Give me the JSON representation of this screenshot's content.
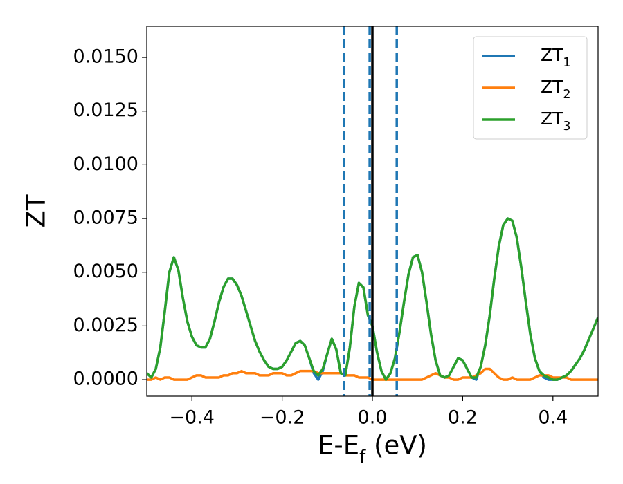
{
  "chart_data": {
    "type": "line",
    "xlabel": "E-E_{f} (eV)",
    "ylabel": "ZT",
    "xlim": [
      -0.5,
      0.5
    ],
    "ylim": [
      -0.00077,
      0.01645
    ],
    "xticks": [
      {
        "value": -0.4,
        "label": "−0.4"
      },
      {
        "value": -0.2,
        "label": "−0.2"
      },
      {
        "value": 0,
        "label": "0.0"
      },
      {
        "value": 0.2,
        "label": "0.2"
      },
      {
        "value": 0.4,
        "label": "0.4"
      }
    ],
    "yticks": [
      {
        "value": 0,
        "label": "0.0000"
      },
      {
        "value": 0.0025,
        "label": "0.0025"
      },
      {
        "value": 0.005,
        "label": "0.0050"
      },
      {
        "value": 0.0075,
        "label": "0.0075"
      },
      {
        "value": 0.01,
        "label": "0.0100"
      },
      {
        "value": 0.0125,
        "label": "0.0125"
      },
      {
        "value": 0.015,
        "label": "0.0150"
      }
    ],
    "legend": "upper right",
    "vlines": [
      {
        "x": -0.063,
        "color": "#1f77b4",
        "style": "dashed"
      },
      {
        "x": -0.006,
        "color": "#1f77b4",
        "style": "dashed"
      },
      {
        "x": 0.054,
        "color": "#1f77b4",
        "style": "dashed"
      },
      {
        "x": 0,
        "color": "#000000",
        "style": "solid"
      }
    ],
    "x": [
      -0.5,
      -0.49,
      -0.48,
      -0.47,
      -0.46,
      -0.45,
      -0.44,
      -0.43,
      -0.42,
      -0.41,
      -0.4,
      -0.39,
      -0.38,
      -0.37,
      -0.36,
      -0.35,
      -0.34,
      -0.33,
      -0.32,
      -0.31,
      -0.3,
      -0.29,
      -0.28,
      -0.27,
      -0.26,
      -0.25,
      -0.24,
      -0.23,
      -0.22,
      -0.21,
      -0.2,
      -0.19,
      -0.18,
      -0.17,
      -0.16,
      -0.15,
      -0.14,
      -0.13,
      -0.12,
      -0.11,
      -0.1,
      -0.09,
      -0.08,
      -0.07,
      -0.06,
      -0.05,
      -0.04,
      -0.03,
      -0.02,
      -0.01,
      0,
      0.01,
      0.02,
      0.03,
      0.04,
      0.05,
      0.06,
      0.07,
      0.08,
      0.09,
      0.1,
      0.11,
      0.12,
      0.13,
      0.14,
      0.15,
      0.16,
      0.17,
      0.18,
      0.19,
      0.2,
      0.21,
      0.22,
      0.23,
      0.24,
      0.25,
      0.26,
      0.27,
      0.28,
      0.29,
      0.3,
      0.31,
      0.32,
      0.33,
      0.34,
      0.35,
      0.36,
      0.37,
      0.38,
      0.39,
      0.4,
      0.41,
      0.42,
      0.43,
      0.44,
      0.45,
      0.46,
      0.47,
      0.48,
      0.49,
      0.5
    ],
    "series": [
      {
        "name": "ZT_{1}",
        "color": "#1f77b4",
        "values": [
          0.0003,
          0.0001,
          0.0005,
          0.0015,
          0.0032,
          0.005,
          0.0057,
          0.0051,
          0.0038,
          0.0027,
          0.002,
          0.0016,
          0.0015,
          0.0015,
          0.0019,
          0.0027,
          0.0036,
          0.0043,
          0.0047,
          0.0047,
          0.0044,
          0.0039,
          0.0032,
          0.0025,
          0.0018,
          0.0013,
          0.0009,
          0.0006,
          0.0005,
          0.0005,
          0.0006,
          0.0009,
          0.0013,
          0.0017,
          0.0018,
          0.0016,
          0.001,
          0.0003,
          0.0,
          0.0004,
          0.0012,
          0.0019,
          0.0014,
          0.0003,
          0.0002,
          0.0015,
          0.0034,
          0.0045,
          0.0043,
          0.003,
          0.0025,
          0.0013,
          0.0004,
          0.0,
          0.0003,
          0.001,
          0.0022,
          0.0036,
          0.0049,
          0.0057,
          0.0058,
          0.005,
          0.0036,
          0.0021,
          0.0009,
          0.0002,
          0.0001,
          0.0002,
          0.0006,
          0.001,
          0.0009,
          0.0005,
          0.0001,
          0.0,
          0.0006,
          0.0016,
          0.003,
          0.0047,
          0.0062,
          0.0072,
          0.0075,
          0.0074,
          0.0066,
          0.0052,
          0.0036,
          0.0021,
          0.001,
          0.0004,
          0.0001,
          0.0,
          0.0,
          0.0,
          0.0001,
          0.0002,
          0.0004,
          0.0007,
          0.001,
          0.0014,
          0.0019,
          0.0024,
          0.0029
        ]
      },
      {
        "name": "ZT_{2}",
        "color": "#ff7f0e",
        "values": [
          0.0,
          0.0,
          0.0001,
          0.0,
          0.0001,
          0.0001,
          0.0,
          0.0,
          0.0,
          0.0,
          0.0001,
          0.0002,
          0.0002,
          0.0001,
          0.0001,
          0.0001,
          0.0001,
          0.0002,
          0.0002,
          0.0003,
          0.0003,
          0.0004,
          0.0003,
          0.0003,
          0.0003,
          0.0002,
          0.0002,
          0.0002,
          0.0003,
          0.0003,
          0.0003,
          0.0002,
          0.0002,
          0.0003,
          0.0004,
          0.0004,
          0.0004,
          0.0004,
          0.0003,
          0.0003,
          0.0003,
          0.0003,
          0.0003,
          0.0003,
          0.0002,
          0.0002,
          0.0002,
          0.0001,
          0.0001,
          0.0001,
          0.0,
          0.0,
          0.0,
          0.0,
          0.0,
          0.0,
          0.0,
          0.0,
          0.0,
          0.0,
          0.0,
          0.0,
          0.0001,
          0.0002,
          0.0003,
          0.0002,
          0.0001,
          0.0001,
          0.0,
          0.0,
          0.0001,
          0.0001,
          0.0001,
          0.0002,
          0.0003,
          0.0005,
          0.0005,
          0.0003,
          0.0001,
          0.0,
          0.0,
          0.0001,
          0.0,
          0.0,
          0.0,
          0.0,
          0.0001,
          0.0002,
          0.0002,
          0.0002,
          0.0001,
          0.0001,
          0.0001,
          0.0001,
          0.0,
          0.0,
          0.0,
          0.0,
          0.0,
          0.0,
          0.0
        ]
      },
      {
        "name": "ZT_{3}",
        "color": "#2ca02c",
        "values": [
          0.0003,
          0.0001,
          0.0005,
          0.0015,
          0.0032,
          0.005,
          0.0057,
          0.0051,
          0.0038,
          0.0027,
          0.002,
          0.0016,
          0.0015,
          0.0015,
          0.0019,
          0.0027,
          0.0036,
          0.0043,
          0.0047,
          0.0047,
          0.0044,
          0.0039,
          0.0032,
          0.0025,
          0.0018,
          0.0013,
          0.0009,
          0.0006,
          0.0005,
          0.0005,
          0.0006,
          0.0009,
          0.0013,
          0.0017,
          0.0018,
          0.0016,
          0.001,
          0.0004,
          0.0002,
          0.0005,
          0.0012,
          0.0019,
          0.0014,
          0.0003,
          0.0002,
          0.0015,
          0.0034,
          0.0045,
          0.0043,
          0.003,
          0.0025,
          0.0013,
          0.0004,
          0.0,
          0.0003,
          0.001,
          0.0022,
          0.0036,
          0.0049,
          0.0057,
          0.0058,
          0.005,
          0.0036,
          0.0021,
          0.0009,
          0.0002,
          0.0001,
          0.0002,
          0.0006,
          0.001,
          0.0009,
          0.0005,
          0.0001,
          0.0001,
          0.0006,
          0.0016,
          0.003,
          0.0047,
          0.0062,
          0.0072,
          0.0075,
          0.0074,
          0.0066,
          0.0052,
          0.0036,
          0.0021,
          0.001,
          0.0004,
          0.0002,
          0.0001,
          0.0,
          0.0,
          0.0001,
          0.0002,
          0.0004,
          0.0007,
          0.001,
          0.0014,
          0.0019,
          0.0024,
          0.0029
        ]
      }
    ]
  }
}
